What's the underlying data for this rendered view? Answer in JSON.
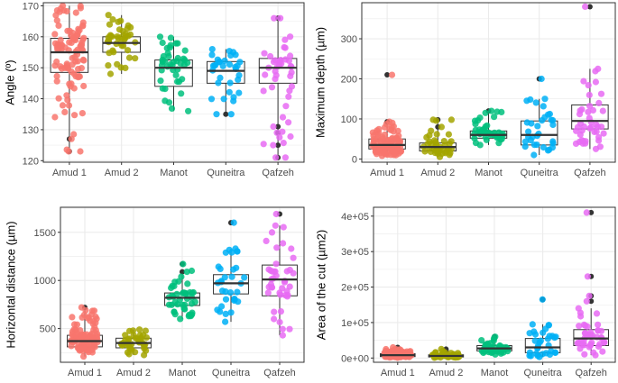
{
  "figure": {
    "colors": {
      "Amud 1": "#F8766D",
      "Amud 2": "#A3A500",
      "Manot": "#00BF7D",
      "Quneitra": "#00B0F6",
      "Qafzeh": "#E76BF3",
      "outlier": "#333333",
      "panel_bg": "#FFFFFF",
      "grid": "#EBEBEB",
      "box": "#333333"
    }
  },
  "chart_data": [
    {
      "type": "boxplot",
      "title": "",
      "xlabel": "",
      "ylabel": "Angle (º)",
      "categories": [
        "Amud 1",
        "Amud 2",
        "Manot",
        "Quneitra",
        "Qafzeh"
      ],
      "ylim": [
        119.5,
        171
      ],
      "yticks": [
        120,
        130,
        140,
        150,
        160,
        170
      ],
      "ytick_labels": [
        "120",
        "130",
        "140",
        "150",
        "160",
        "170"
      ],
      "boxes": [
        {
          "min": 123,
          "q1": 148.5,
          "median": 155,
          "q3": 159.5,
          "max": 170,
          "n": 100,
          "outliers": [
            127,
            123
          ]
        },
        {
          "min": 148,
          "q1": 155,
          "median": 158,
          "q3": 160,
          "max": 167,
          "n": 40,
          "outliers": []
        },
        {
          "min": 136,
          "q1": 144,
          "median": 150,
          "q3": 152.5,
          "max": 160,
          "n": 40,
          "outliers": []
        },
        {
          "min": 135,
          "q1": 145,
          "median": 149,
          "q3": 152,
          "max": 156,
          "n": 30,
          "outliers": [
            135
          ]
        },
        {
          "min": 121,
          "q1": 145,
          "median": 150,
          "q3": 153,
          "max": 166,
          "n": 40,
          "outliers": [
            166,
            131,
            129,
            125,
            121
          ]
        }
      ]
    },
    {
      "type": "boxplot",
      "title": "",
      "xlabel": "",
      "ylabel": "Maximum depth (µm)",
      "categories": [
        "Amud 1",
        "Amud 2",
        "Manot",
        "Quneitra",
        "Qafzeh"
      ],
      "ylim": [
        -8,
        390
      ],
      "yticks": [
        0,
        100,
        200,
        300
      ],
      "ytick_labels": [
        "0",
        "100",
        "200",
        "300"
      ],
      "boxes": [
        {
          "min": 8,
          "q1": 25,
          "median": 35,
          "q3": 50,
          "max": 90,
          "n": 100,
          "outliers": [
            210,
            93
          ]
        },
        {
          "min": 5,
          "q1": 20,
          "median": 30,
          "q3": 40,
          "max": 98,
          "n": 40,
          "outliers": [
            98,
            80
          ]
        },
        {
          "min": 35,
          "q1": 52,
          "median": 60,
          "q3": 70,
          "max": 118,
          "n": 40,
          "outliers": [
            120
          ]
        },
        {
          "min": 10,
          "q1": 35,
          "median": 60,
          "q3": 95,
          "max": 150,
          "n": 30,
          "outliers": [
            200
          ]
        },
        {
          "min": 25,
          "q1": 75,
          "median": 95,
          "q3": 135,
          "max": 225,
          "n": 40,
          "outliers": [
            380
          ]
        }
      ]
    },
    {
      "type": "boxplot",
      "title": "",
      "xlabel": "",
      "ylabel": "Horizontal distance (µm)",
      "categories": [
        "Amud 1",
        "Amud 2",
        "Manot",
        "Quneitra",
        "Qafzeh"
      ],
      "ylim": [
        150,
        1760
      ],
      "yticks": [
        500,
        1000,
        1500
      ],
      "ytick_labels": [
        "500",
        "1000",
        "1500"
      ],
      "boxes": [
        {
          "min": 210,
          "q1": 310,
          "median": 370,
          "q3": 430,
          "max": 690,
          "n": 100,
          "outliers": [
            720
          ]
        },
        {
          "min": 225,
          "q1": 300,
          "median": 350,
          "q3": 400,
          "max": 490,
          "n": 40,
          "outliers": []
        },
        {
          "min": 600,
          "q1": 740,
          "median": 820,
          "q3": 870,
          "max": 1100,
          "n": 40,
          "outliers": [
            1170,
            1090
          ]
        },
        {
          "min": 570,
          "q1": 860,
          "median": 970,
          "q3": 1060,
          "max": 1330,
          "n": 30,
          "outliers": [
            1600
          ]
        },
        {
          "min": 430,
          "q1": 840,
          "median": 1010,
          "q3": 1160,
          "max": 1570,
          "n": 40,
          "outliers": [
            1690
          ]
        }
      ]
    },
    {
      "type": "boxplot",
      "title": "",
      "xlabel": "",
      "ylabel": "Area of the cut (µm2)",
      "categories": [
        "Amud 1",
        "Amud 2",
        "Manot",
        "Quneitra",
        "Qafzeh"
      ],
      "ylim": [
        -12000,
        425000
      ],
      "yticks": [
        0,
        100000,
        200000,
        300000,
        400000
      ],
      "ytick_labels": [
        "0e+00",
        "1e+05",
        "2e+05",
        "3e+05",
        "4e+05"
      ],
      "boxes": [
        {
          "min": 1000,
          "q1": 4000,
          "median": 8000,
          "q3": 12000,
          "max": 25000,
          "n": 100,
          "outliers": [
            30000
          ]
        },
        {
          "min": 1000,
          "q1": 3000,
          "median": 6000,
          "q3": 9000,
          "max": 16000,
          "n": 40,
          "outliers": [
            25000,
            20000
          ]
        },
        {
          "min": 10000,
          "q1": 20000,
          "median": 27000,
          "q3": 35000,
          "max": 50000,
          "n": 40,
          "outliers": [
            60000,
            55000
          ]
        },
        {
          "min": 3000,
          "q1": 15000,
          "median": 30000,
          "q3": 55000,
          "max": 95000,
          "n": 30,
          "outliers": [
            165000
          ]
        },
        {
          "min": 8000,
          "q1": 35000,
          "median": 55000,
          "q3": 80000,
          "max": 140000,
          "n": 40,
          "outliers": [
            410000,
            230000,
            175000,
            160000
          ]
        }
      ]
    }
  ]
}
